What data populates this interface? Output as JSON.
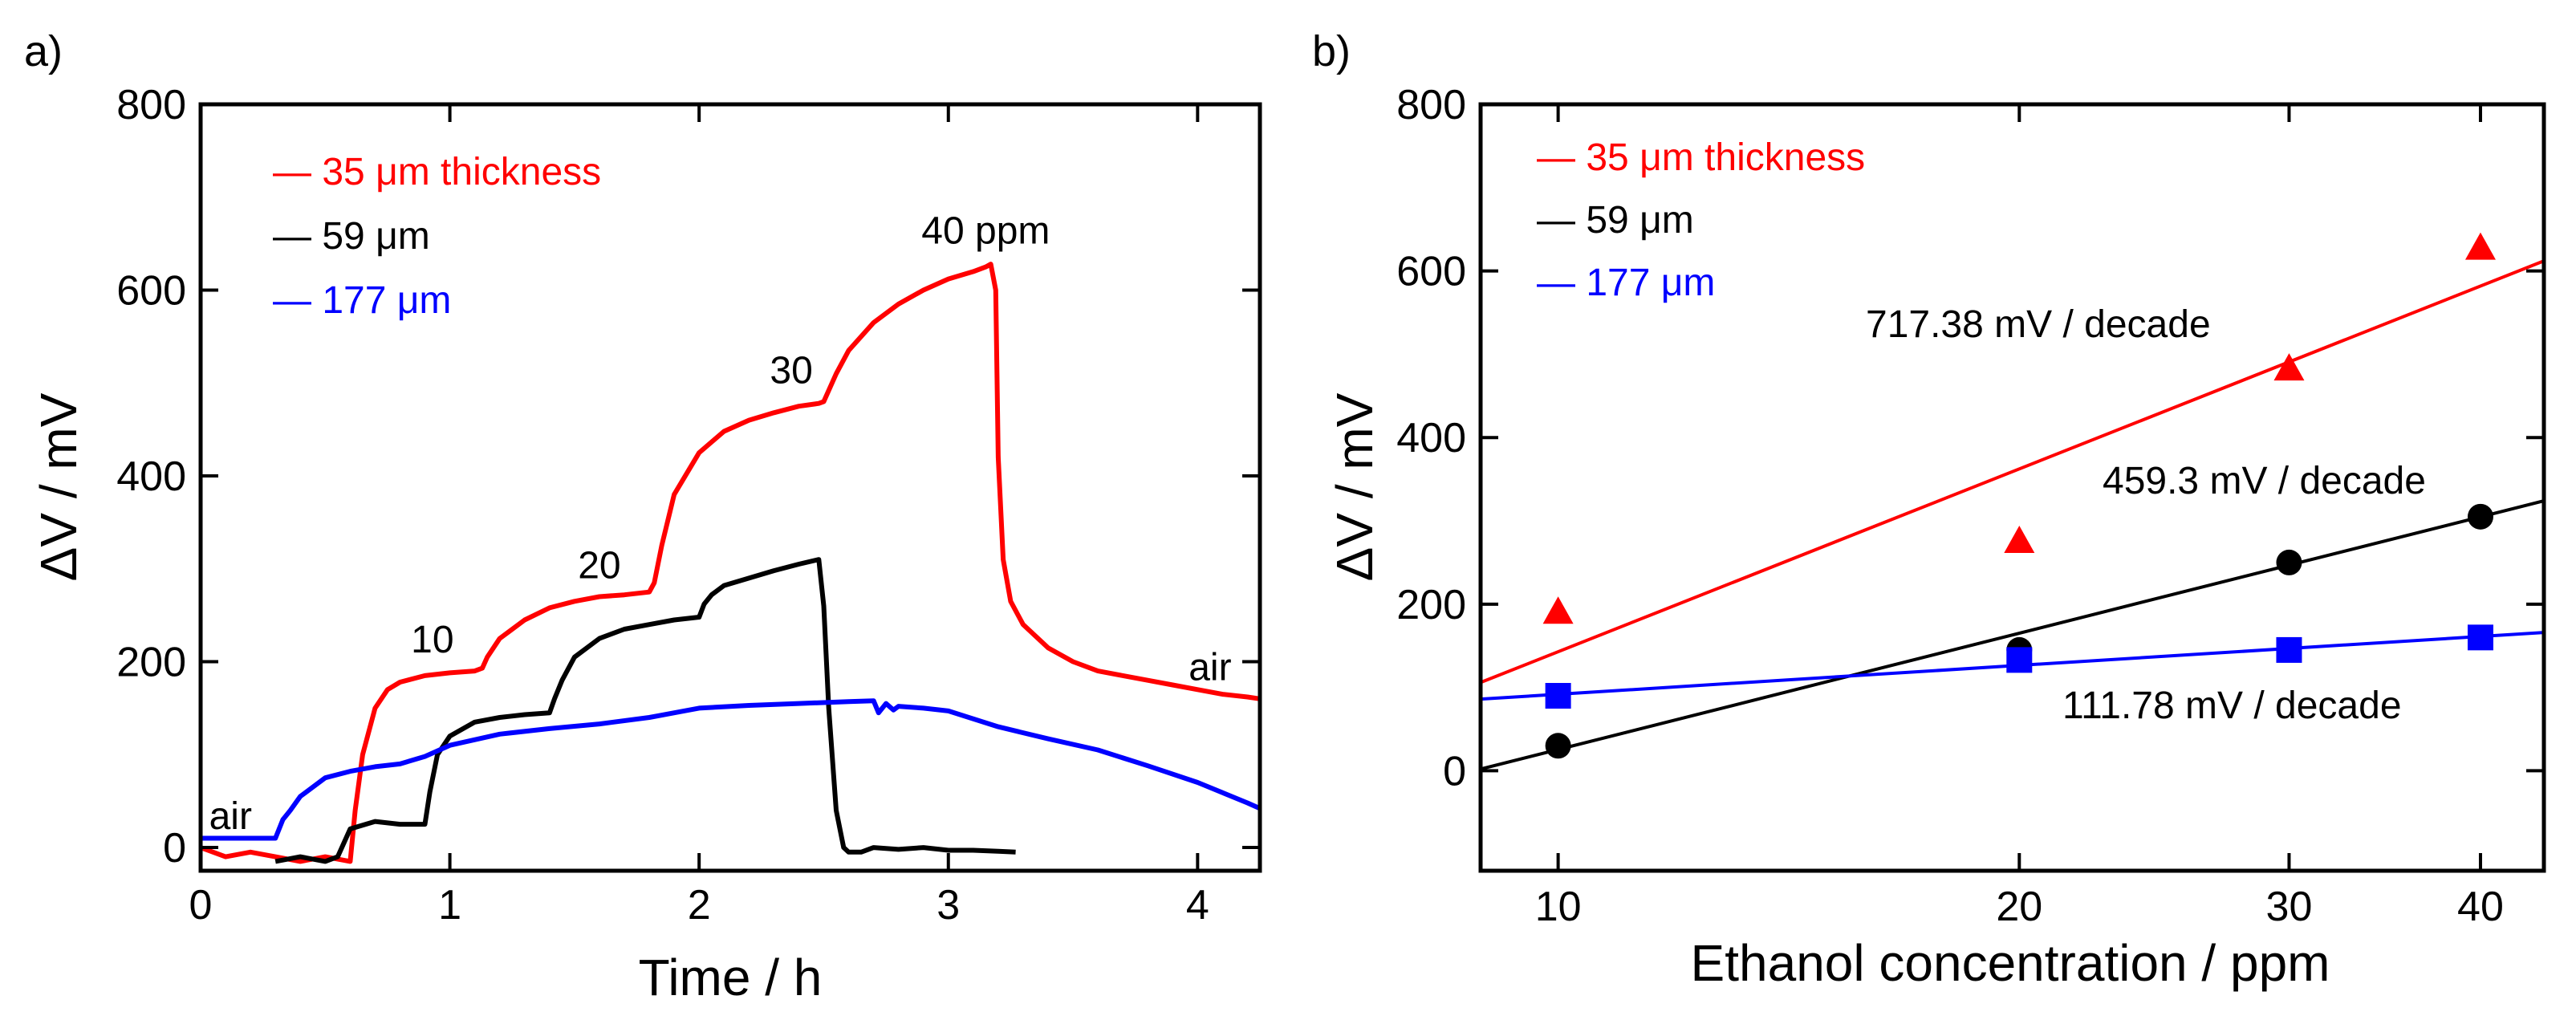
{
  "chart_data": [
    {
      "type": "line",
      "panel_label": "a)",
      "xlabel": "Time / h",
      "ylabel": "ΔV / mV",
      "xlim": [
        0,
        4.25
      ],
      "ylim": [
        -25,
        800
      ],
      "x_ticks": [
        0,
        1,
        2,
        3,
        4
      ],
      "x_tick_labels": [
        "0",
        "1",
        "2",
        "3",
        "4"
      ],
      "y_ticks": [
        0,
        200,
        400,
        600,
        800
      ],
      "y_tick_labels": [
        "0",
        "200",
        "400",
        "600",
        "800"
      ],
      "legend": {
        "location": "top-left",
        "entries": [
          {
            "dash": "—",
            "label": "35 μm thickness",
            "color": "#ff0000"
          },
          {
            "dash": "—",
            "label": "59 μm",
            "color": "#000000"
          },
          {
            "dash": "—",
            "label": "177 μm",
            "color": "#0000ff"
          }
        ]
      },
      "series": [
        {
          "name": "35 μm thickness",
          "color": "#ff0000",
          "x": [
            0,
            0.1,
            0.2,
            0.3,
            0.4,
            0.5,
            0.6,
            0.62,
            0.65,
            0.7,
            0.75,
            0.8,
            0.9,
            1.0,
            1.1,
            1.13,
            1.15,
            1.2,
            1.3,
            1.4,
            1.5,
            1.6,
            1.7,
            1.8,
            1.82,
            1.85,
            1.9,
            2.0,
            2.1,
            2.2,
            2.3,
            2.4,
            2.48,
            2.5,
            2.55,
            2.6,
            2.7,
            2.8,
            2.9,
            3.0,
            3.1,
            3.15,
            3.17,
            3.19,
            3.2,
            3.22,
            3.25,
            3.3,
            3.4,
            3.5,
            3.6,
            3.7,
            3.8,
            3.9,
            4.0,
            4.1,
            4.2,
            4.25
          ],
          "y": [
            0,
            -10,
            -5,
            -10,
            -15,
            -10,
            -15,
            40,
            100,
            150,
            170,
            178,
            185,
            188,
            190,
            193,
            205,
            225,
            245,
            258,
            265,
            270,
            272,
            275,
            285,
            325,
            380,
            425,
            448,
            460,
            468,
            475,
            478,
            480,
            510,
            535,
            565,
            585,
            600,
            612,
            620,
            625,
            628,
            600,
            420,
            310,
            265,
            240,
            215,
            200,
            190,
            185,
            180,
            175,
            170,
            165,
            162,
            160
          ]
        },
        {
          "name": "59 μm",
          "color": "#000000",
          "x": [
            0.3,
            0.4,
            0.5,
            0.55,
            0.6,
            0.7,
            0.8,
            0.9,
            0.92,
            0.95,
            1.0,
            1.1,
            1.2,
            1.3,
            1.4,
            1.42,
            1.45,
            1.5,
            1.6,
            1.7,
            1.8,
            1.9,
            2.0,
            2.02,
            2.05,
            2.1,
            2.2,
            2.3,
            2.4,
            2.48,
            2.5,
            2.52,
            2.55,
            2.58,
            2.6,
            2.65,
            2.7,
            2.8,
            2.9,
            3.0,
            3.1,
            3.2,
            3.27
          ],
          "y": [
            -15,
            -10,
            -15,
            -10,
            20,
            28,
            25,
            25,
            60,
            100,
            120,
            135,
            140,
            143,
            145,
            160,
            180,
            205,
            225,
            235,
            240,
            245,
            248,
            262,
            272,
            282,
            290,
            298,
            305,
            310,
            260,
            150,
            40,
            0,
            -5,
            -5,
            0,
            -2,
            0,
            -3,
            -3,
            -4,
            -5
          ]
        },
        {
          "name": "177 μm",
          "color": "#0000ff",
          "x": [
            0,
            0.1,
            0.2,
            0.3,
            0.33,
            0.36,
            0.4,
            0.5,
            0.6,
            0.7,
            0.8,
            0.9,
            1.0,
            1.2,
            1.4,
            1.6,
            1.8,
            2.0,
            2.2,
            2.4,
            2.6,
            2.7,
            2.72,
            2.75,
            2.78,
            2.8,
            2.9,
            3.0,
            3.2,
            3.4,
            3.6,
            3.8,
            4.0,
            4.2,
            4.25
          ],
          "y": [
            10,
            10,
            10,
            10,
            30,
            40,
            55,
            75,
            82,
            87,
            90,
            98,
            110,
            122,
            128,
            133,
            140,
            150,
            153,
            155,
            157,
            158,
            145,
            155,
            148,
            152,
            150,
            147,
            130,
            117,
            105,
            88,
            70,
            48,
            42
          ]
        }
      ],
      "annotations": [
        {
          "text": "air",
          "x": 0.12,
          "y": 20
        },
        {
          "text": "10",
          "x": 0.93,
          "y": 210
        },
        {
          "text": "20",
          "x": 1.6,
          "y": 290
        },
        {
          "text": "30",
          "x": 2.37,
          "y": 500
        },
        {
          "text": "40 ppm",
          "x": 3.15,
          "y": 650
        },
        {
          "text": "air",
          "x": 4.05,
          "y": 180
        }
      ]
    },
    {
      "type": "scatter",
      "panel_label": "b)",
      "xlabel": "Ethanol concentration / ppm",
      "ylabel": "ΔV / mV",
      "x_scale": "log",
      "xlim": [
        8.9,
        44
      ],
      "ylim": [
        -120,
        800
      ],
      "x_ticks": [
        10,
        20,
        30,
        40
      ],
      "x_tick_labels": [
        "10",
        "20",
        "30",
        "40"
      ],
      "y_ticks": [
        0,
        200,
        400,
        600,
        800
      ],
      "y_tick_labels": [
        "0",
        "200",
        "400",
        "600",
        "800"
      ],
      "legend": {
        "location": "top-left",
        "entries": [
          {
            "dash": "—",
            "label": "35 μm thickness",
            "color": "#ff0000"
          },
          {
            "dash": "—",
            "label": "59 μm",
            "color": "#000000"
          },
          {
            "dash": "—",
            "label": "177 μm",
            "color": "#0000ff"
          }
        ]
      },
      "series": [
        {
          "name": "35 μm thickness",
          "color": "#ff0000",
          "marker": "triangle",
          "x": [
            10,
            20,
            30,
            40
          ],
          "y": [
            190,
            275,
            482,
            627
          ],
          "fit_line": {
            "x": [
              8.9,
              44
            ],
            "y": [
              106,
              612
            ]
          },
          "slope_label": "717.38 mV / decade"
        },
        {
          "name": "59 μm",
          "color": "#000000",
          "marker": "circle",
          "x": [
            10,
            20,
            30,
            40
          ],
          "y": [
            30,
            145,
            250,
            305
          ],
          "fit_line": {
            "x": [
              8.9,
              44
            ],
            "y": [
              2,
              324
            ]
          },
          "slope_label": "459.3 mV / decade"
        },
        {
          "name": "177 μm",
          "color": "#0000ff",
          "marker": "square",
          "x": [
            10,
            20,
            30,
            40
          ],
          "y": [
            90,
            133,
            145,
            160
          ],
          "fit_line": {
            "x": [
              8.9,
              44
            ],
            "y": [
              86,
              166
            ]
          },
          "slope_label": "111.78 mV / decade"
        }
      ]
    }
  ]
}
